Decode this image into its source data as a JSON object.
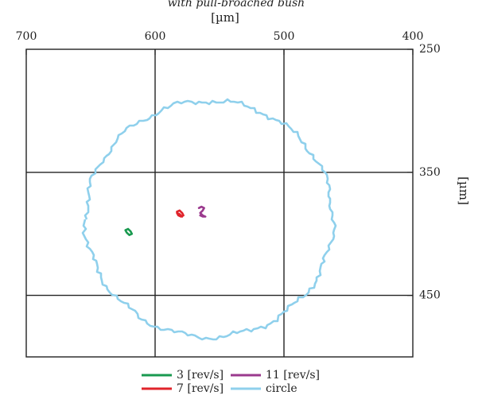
{
  "chart_data": {
    "type": "line",
    "subtitle": "with pull-broached bush",
    "xlabel": "[µm]",
    "ylabel": "[µm]",
    "xlim": [
      700,
      400
    ],
    "ylim": [
      250,
      500
    ],
    "x_ticks": [
      700,
      600,
      500,
      400
    ],
    "y_ticks": [
      250,
      350,
      450
    ],
    "x_tick_labels": [
      "700",
      "600",
      "500",
      "400"
    ],
    "y_tick_labels": [
      "250",
      "350",
      "450"
    ],
    "x_axis_position": "top",
    "y_axis_position": "right",
    "x_reversed": true,
    "y_reversed": true,
    "grid": true,
    "legend_position": "bottom",
    "series": [
      {
        "name": "3 [rev/s]",
        "color": "#1a9a50",
        "x": [
          623,
          621,
          619,
          618,
          620,
          622,
          623
        ],
        "y": [
          397,
          396,
          398,
          400,
          401,
          399,
          397
        ]
      },
      {
        "name": "7 [rev/s]",
        "color": "#e0242b",
        "x": [
          583,
          581,
          579,
          578,
          580,
          582,
          583,
          581,
          579
        ],
        "y": [
          382,
          381,
          383,
          385,
          386,
          385,
          383,
          384,
          386
        ]
      },
      {
        "name": "11 [rev/s]",
        "color": "#9b3a8e",
        "x": [
          566,
          564,
          562,
          563,
          565,
          563,
          561,
          563,
          565
        ],
        "y": [
          379,
          378,
          379,
          381,
          383,
          385,
          386,
          386,
          385
        ]
      },
      {
        "name": "circle",
        "color": "#8fd0ec",
        "center": [
          558,
          388
        ],
        "radius": 96
      }
    ]
  }
}
